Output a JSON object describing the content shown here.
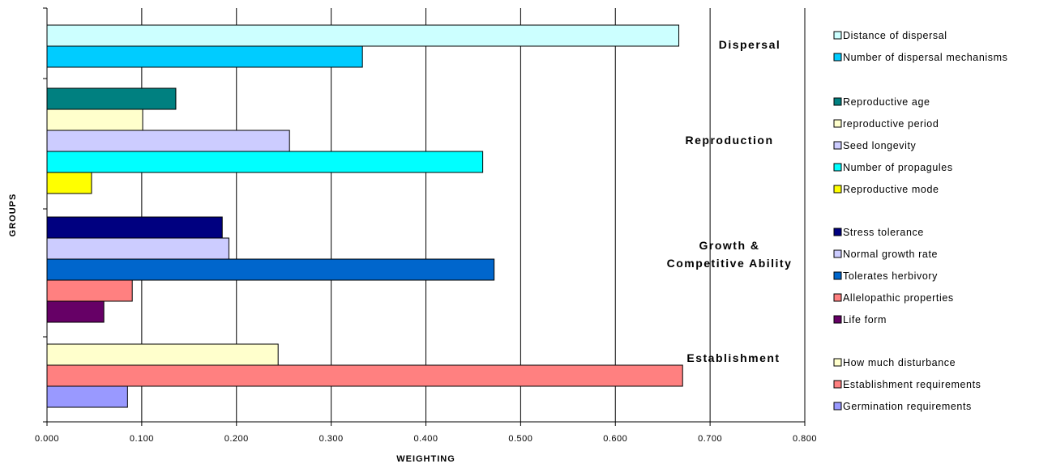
{
  "chart_data": {
    "type": "bar",
    "orientation": "horizontal",
    "xlabel": "WEIGHTING",
    "ylabel": "GROUPS",
    "xlim": [
      0,
      0.8
    ],
    "xticks": [
      "0.000",
      "0.100",
      "0.200",
      "0.300",
      "0.400",
      "0.500",
      "0.600",
      "0.700",
      "0.800"
    ],
    "grid": "vertical",
    "legend_position": "right",
    "groups": [
      {
        "label": "Dispersal",
        "series": [
          {
            "name": "Distance of dispersal",
            "value": 0.667,
            "color": "#CCFFFF"
          },
          {
            "name": "Number of dispersal mechanisms",
            "value": 0.333,
            "color": "#00CCFF"
          }
        ]
      },
      {
        "label": "Reproduction",
        "series": [
          {
            "name": "Reproductive age",
            "value": 0.136,
            "color": "#008080"
          },
          {
            "name": "reproductive period",
            "value": 0.101,
            "color": "#FFFFCC"
          },
          {
            "name": "Seed longevity",
            "value": 0.256,
            "color": "#CCCCFF"
          },
          {
            "name": "Number of propagules",
            "value": 0.46,
            "color": "#00FFFF"
          },
          {
            "name": "Reproductive mode",
            "value": 0.047,
            "color": "#FFFF00"
          }
        ]
      },
      {
        "label": "Growth & Competitive Ability",
        "label_lines": [
          "Growth &",
          "Competitive Ability"
        ],
        "series": [
          {
            "name": "Stress tolerance",
            "value": 0.185,
            "color": "#000080"
          },
          {
            "name": "Normal growth rate",
            "value": 0.192,
            "color": "#CCCCFF"
          },
          {
            "name": "Tolerates herbivory",
            "value": 0.472,
            "color": "#0066CC"
          },
          {
            "name": "Allelopathic properties",
            "value": 0.09,
            "color": "#FF8080"
          },
          {
            "name": "Life form",
            "value": 0.06,
            "color": "#660066"
          }
        ]
      },
      {
        "label": "Establishment",
        "series": [
          {
            "name": "How much disturbance",
            "value": 0.244,
            "color": "#FFFFCC"
          },
          {
            "name": "Establishment requirements",
            "value": 0.671,
            "color": "#FF8080"
          },
          {
            "name": "Germination requirements",
            "value": 0.085,
            "color": "#9999FF"
          }
        ]
      }
    ]
  }
}
